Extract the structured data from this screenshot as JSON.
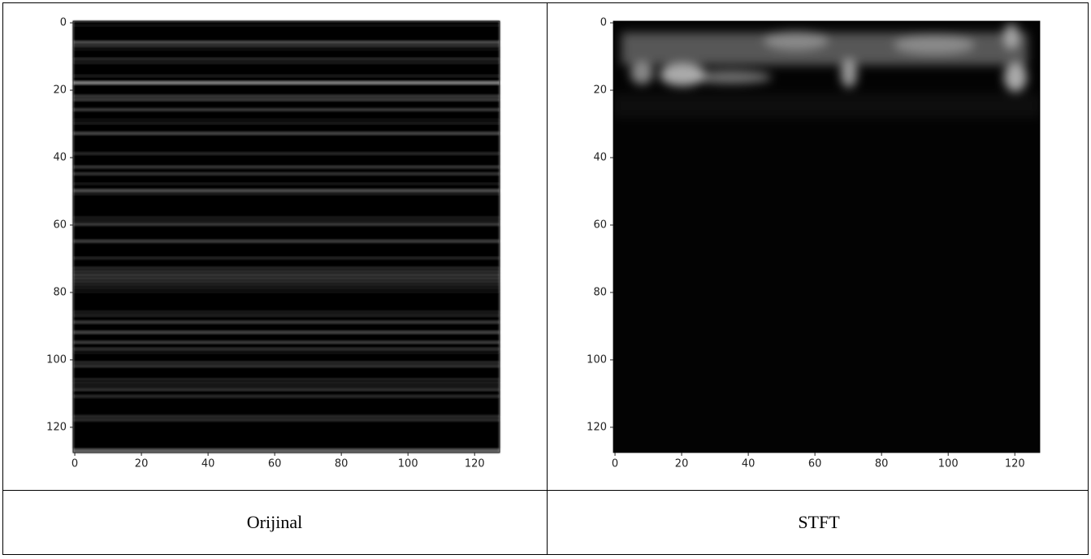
{
  "table": {
    "captions": [
      "Orijinal",
      "STFT"
    ]
  },
  "chart_data": [
    {
      "type": "image",
      "xlim": [
        -0.5,
        127.5
      ],
      "ylim": [
        127.5,
        -0.5
      ],
      "xticks": [
        0,
        20,
        40,
        60,
        80,
        100,
        120
      ],
      "yticks": [
        0,
        20,
        40,
        60,
        80,
        100,
        120
      ]
    },
    {
      "type": "image",
      "xlim": [
        -0.5,
        127.5
      ],
      "ylim": [
        127.5,
        -0.5
      ],
      "xticks": [
        0,
        20,
        40,
        60,
        80,
        100,
        120
      ],
      "yticks": [
        0,
        20,
        40,
        60,
        80,
        100,
        120
      ]
    }
  ]
}
